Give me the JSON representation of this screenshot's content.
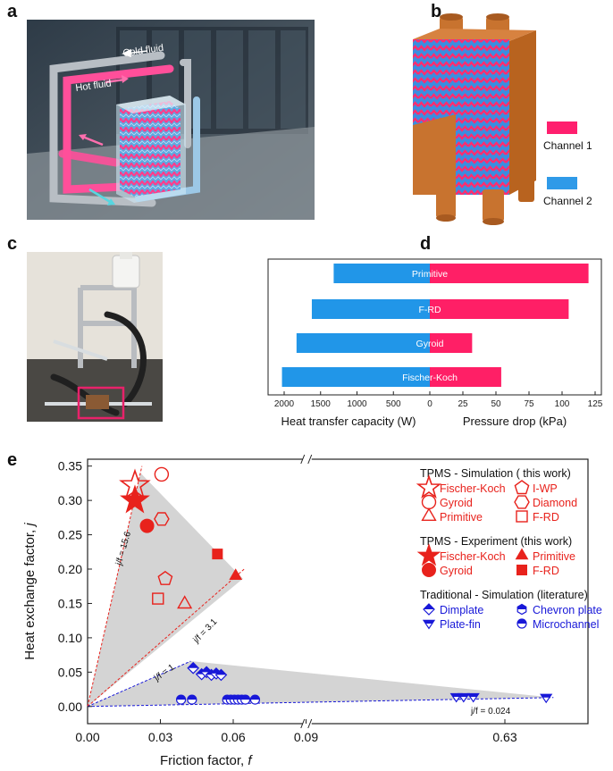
{
  "panels": {
    "a": {
      "letter": "a",
      "label_cold": "Cold fluid",
      "label_hot": "Hot fluid"
    },
    "b": {
      "letter": "b",
      "legend": [
        {
          "label": "Channel 1",
          "color": "#ff1f6e"
        },
        {
          "label": "Channel 2",
          "color": "#2f9ae8"
        }
      ]
    },
    "c": {
      "letter": "c"
    },
    "d": {
      "letter": "d"
    },
    "e": {
      "letter": "e"
    }
  },
  "colors": {
    "heat_bar": "#2196e8",
    "pressure_bar": "#ff1f66",
    "tpms": "#e8221c",
    "traditional": "#1818d8",
    "region": "#d4d4d4"
  },
  "chart_data": [
    {
      "type": "bar",
      "orientation": "horizontal-diverging",
      "categories": [
        "Primitive",
        "F-RD",
        "Gyroid",
        "Fischer-Koch"
      ],
      "series": [
        {
          "name": "Heat transfer capacity (W)",
          "values": [
            1320,
            1620,
            1830,
            2030
          ],
          "direction": "left"
        },
        {
          "name": "Pressure drop (kPa)",
          "values": [
            120,
            105,
            32,
            54
          ],
          "direction": "right"
        }
      ],
      "left_axis": {
        "label": "Heat transfer capacity (W)",
        "range": [
          0,
          2100
        ],
        "ticks": [
          2000,
          1500,
          1000,
          500,
          0
        ]
      },
      "right_axis": {
        "label": "Pressure drop (kPa)",
        "range": [
          0,
          125
        ],
        "ticks": [
          0,
          25,
          50,
          75,
          100,
          125
        ]
      }
    },
    {
      "type": "scatter",
      "xlabel": "Friction factor,",
      "xlabel_symbol": "f",
      "ylabel": "Heat exchange factor,",
      "ylabel_symbol": "j",
      "x_ticks": [
        "0.00",
        "0.03",
        "0.06",
        "0.09",
        "0.63"
      ],
      "y_ticks": [
        "0.00",
        "0.05",
        "0.10",
        "0.15",
        "0.20",
        "0.25",
        "0.30",
        "0.35"
      ],
      "xlim": [
        0,
        0.65
      ],
      "ylim": [
        -0.025,
        0.36
      ],
      "x_break": {
        "low_max": 0.09,
        "high_min": 0.6,
        "high_max": 0.65
      },
      "ratio_lines": [
        {
          "label": "j/f = 15.6",
          "slope": 15.6,
          "color": "#e8221c"
        },
        {
          "label": "j/f = 3.1",
          "slope": 3.1,
          "color": "#e8221c"
        },
        {
          "label": "j/f = 1",
          "slope": 1,
          "color": "#1818d8"
        },
        {
          "label": "j/f = 0.024",
          "slope": 0.024,
          "color": "#1818d8"
        }
      ],
      "legend_groups": [
        {
          "title": "TPMS - Simulation ( this work)",
          "items": [
            {
              "label": "Fischer-Koch",
              "marker": "star-open"
            },
            {
              "label": "I-WP",
              "marker": "pentagon-open"
            },
            {
              "label": "Gyroid",
              "marker": "circle-open"
            },
            {
              "label": "Diamond",
              "marker": "hexagon-open"
            },
            {
              "label": "Primitive",
              "marker": "triangle-open"
            },
            {
              "label": "F-RD",
              "marker": "square-open"
            }
          ]
        },
        {
          "title": "TPMS - Experiment (this work)",
          "items": [
            {
              "label": "Fischer-Koch",
              "marker": "star-filled"
            },
            {
              "label": "Primitive",
              "marker": "triangle-filled"
            },
            {
              "label": "Gyroid",
              "marker": "circle-filled"
            },
            {
              "label": "F-RD",
              "marker": "square-filled"
            }
          ]
        },
        {
          "title": "Traditional - Simulation (literature)",
          "items": [
            {
              "label": "Dimplate",
              "marker": "diamond-half"
            },
            {
              "label": "Chevron plate",
              "marker": "hexagon-half"
            },
            {
              "label": "Plate-fin",
              "marker": "tri-down-half"
            },
            {
              "label": "Microchannel",
              "marker": "circle-half"
            }
          ]
        }
      ],
      "points": [
        {
          "series": "Fischer-Koch (sim)",
          "marker": "star-open",
          "x": 0.0195,
          "y": 0.322
        },
        {
          "series": "Fischer-Koch (exp)",
          "marker": "star-filled",
          "x": 0.0195,
          "y": 0.3
        },
        {
          "series": "Gyroid (sim)",
          "marker": "circle-open",
          "x": 0.0305,
          "y": 0.338
        },
        {
          "series": "Diamond (sim)",
          "marker": "hexagon-open",
          "x": 0.0305,
          "y": 0.273
        },
        {
          "series": "Gyroid (exp)",
          "marker": "circle-filled",
          "x": 0.0245,
          "y": 0.263
        },
        {
          "series": "I-WP (sim)",
          "marker": "pentagon-open",
          "x": 0.032,
          "y": 0.186
        },
        {
          "series": "F-RD (sim)",
          "marker": "square-open",
          "x": 0.029,
          "y": 0.157
        },
        {
          "series": "Primitive (sim)",
          "marker": "triangle-open",
          "x": 0.04,
          "y": 0.149
        },
        {
          "series": "F-RD (exp)",
          "marker": "square-filled",
          "x": 0.0535,
          "y": 0.222
        },
        {
          "series": "Primitive (exp)",
          "marker": "triangle-filled",
          "x": 0.061,
          "y": 0.19
        },
        {
          "series": "Dimplate",
          "marker": "diamond-half",
          "x": 0.0435,
          "y": 0.056
        },
        {
          "series": "Dimplate",
          "marker": "diamond-half",
          "x": 0.047,
          "y": 0.047
        },
        {
          "series": "Dimplate",
          "marker": "diamond-half",
          "x": 0.049,
          "y": 0.05
        },
        {
          "series": "Dimplate",
          "marker": "diamond-half",
          "x": 0.051,
          "y": 0.046
        },
        {
          "series": "Dimplate",
          "marker": "diamond-half",
          "x": 0.053,
          "y": 0.048
        },
        {
          "series": "Dimplate",
          "marker": "diamond-half",
          "x": 0.055,
          "y": 0.046
        },
        {
          "series": "Microchannel",
          "marker": "circle-half",
          "x": 0.0385,
          "y": 0.01
        },
        {
          "series": "Microchannel",
          "marker": "circle-half",
          "x": 0.043,
          "y": 0.01
        },
        {
          "series": "Microchannel",
          "marker": "circle-half",
          "x": 0.0575,
          "y": 0.01
        },
        {
          "series": "Microchannel",
          "marker": "circle-half",
          "x": 0.059,
          "y": 0.01
        },
        {
          "series": "Microchannel",
          "marker": "circle-half",
          "x": 0.0605,
          "y": 0.01
        },
        {
          "series": "Microchannel",
          "marker": "circle-half",
          "x": 0.062,
          "y": 0.01
        },
        {
          "series": "Microchannel",
          "marker": "circle-half",
          "x": 0.0635,
          "y": 0.01
        },
        {
          "series": "Microchannel",
          "marker": "circle-half",
          "x": 0.065,
          "y": 0.01
        },
        {
          "series": "Microchannel",
          "marker": "circle-half",
          "x": 0.069,
          "y": 0.01
        },
        {
          "series": "Plate-fin",
          "marker": "tri-down-half",
          "x": 0.61,
          "y": 0.014
        },
        {
          "series": "Plate-fin",
          "marker": "tri-down-half",
          "x": 0.613,
          "y": 0.014
        },
        {
          "series": "Plate-fin",
          "marker": "tri-down-half",
          "x": 0.617,
          "y": 0.014
        },
        {
          "series": "Plate-fin",
          "marker": "tri-down-half",
          "x": 0.647,
          "y": 0.013
        }
      ]
    }
  ]
}
